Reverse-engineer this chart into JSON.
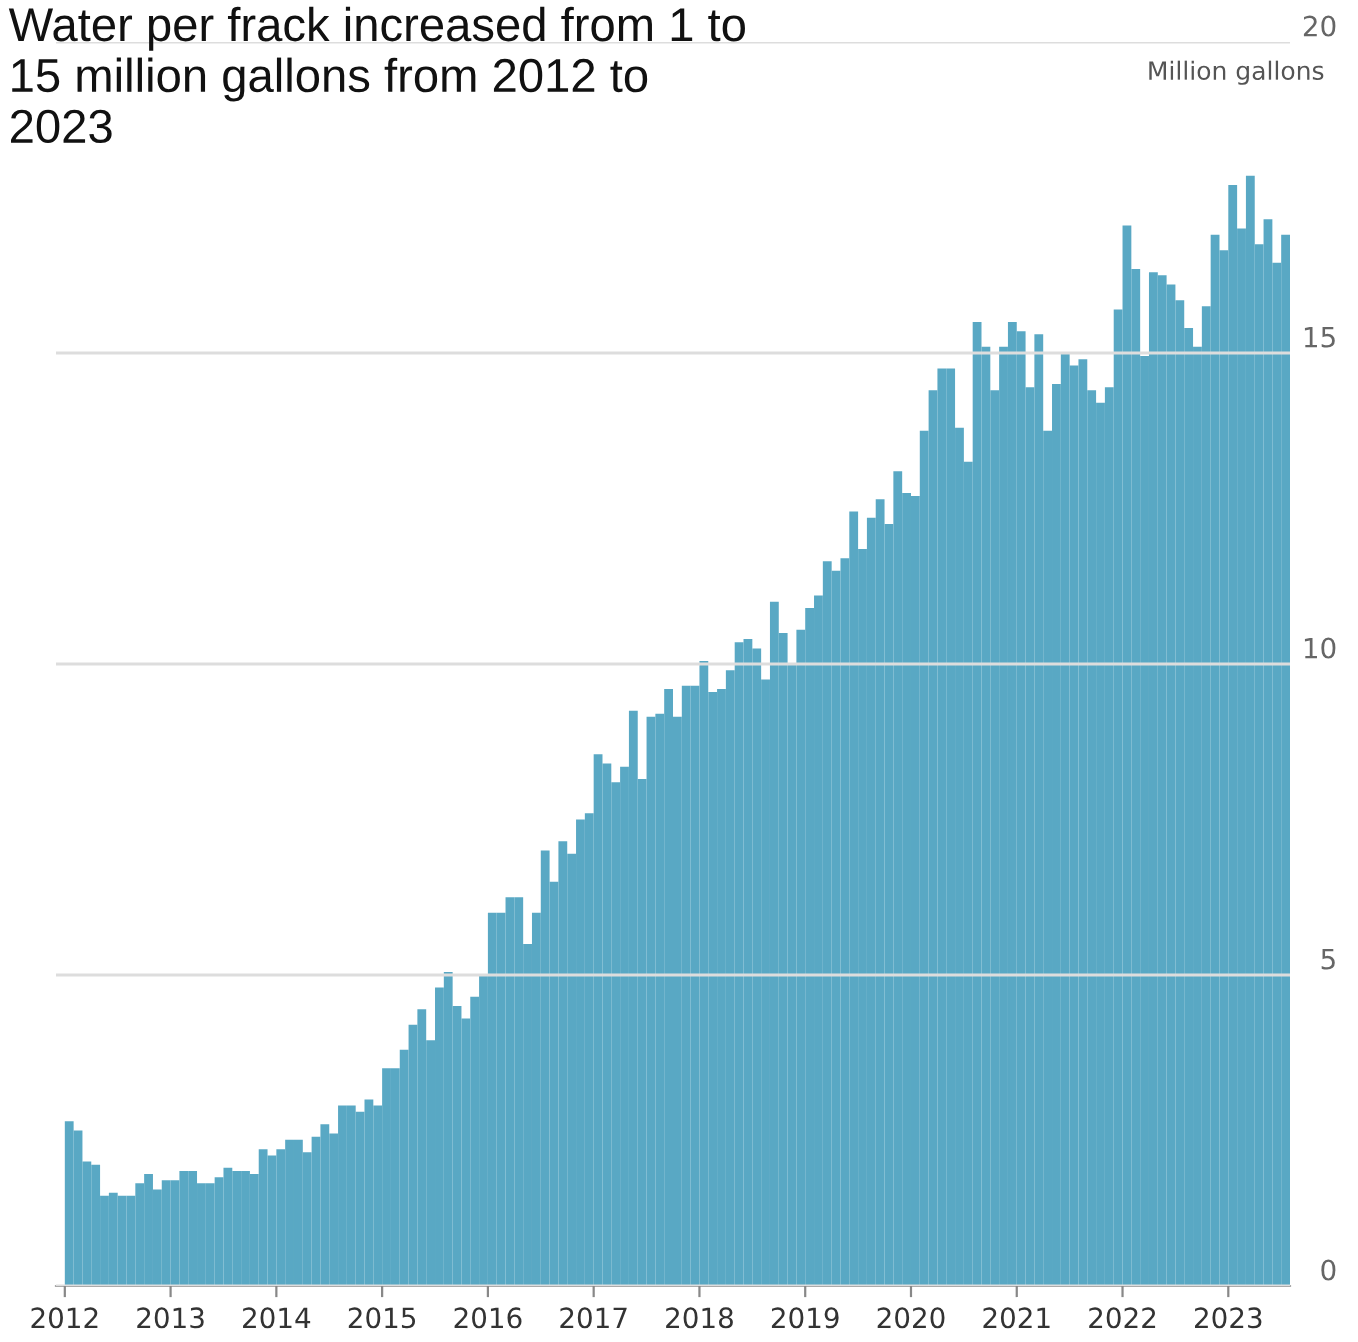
{
  "chart_data": {
    "type": "bar",
    "title": "Water per frack increased from 1 to 15 million gallons from 2012 to 2023",
    "ylabel": "Million gallons",
    "x": [
      "2012-01",
      "2012-02",
      "2012-03",
      "2012-04",
      "2012-05",
      "2012-06",
      "2012-07",
      "2012-08",
      "2012-09",
      "2012-10",
      "2012-11",
      "2012-12",
      "2013-01",
      "2013-02",
      "2013-03",
      "2013-04",
      "2013-05",
      "2013-06",
      "2013-07",
      "2013-08",
      "2013-09",
      "2013-10",
      "2013-11",
      "2013-12",
      "2014-01",
      "2014-02",
      "2014-03",
      "2014-04",
      "2014-05",
      "2014-06",
      "2014-07",
      "2014-08",
      "2014-09",
      "2014-10",
      "2014-11",
      "2014-12",
      "2015-01",
      "2015-02",
      "2015-03",
      "2015-04",
      "2015-05",
      "2015-06",
      "2015-07",
      "2015-08",
      "2015-09",
      "2015-10",
      "2015-11",
      "2015-12",
      "2016-01",
      "2016-02",
      "2016-03",
      "2016-04",
      "2016-05",
      "2016-06",
      "2016-07",
      "2016-08",
      "2016-09",
      "2016-10",
      "2016-11",
      "2016-12",
      "2017-01",
      "2017-02",
      "2017-03",
      "2017-04",
      "2017-05",
      "2017-06",
      "2017-07",
      "2017-08",
      "2017-09",
      "2017-10",
      "2017-11",
      "2017-12",
      "2018-01",
      "2018-02",
      "2018-03",
      "2018-04",
      "2018-05",
      "2018-06",
      "2018-07",
      "2018-08",
      "2018-09",
      "2018-10",
      "2018-11",
      "2018-12",
      "2019-01",
      "2019-02",
      "2019-03",
      "2019-04",
      "2019-05",
      "2019-06",
      "2019-07",
      "2019-08",
      "2019-09",
      "2019-10",
      "2019-11",
      "2019-12",
      "2020-01",
      "2020-02",
      "2020-03",
      "2020-04",
      "2020-05",
      "2020-06",
      "2020-07",
      "2020-08",
      "2020-09",
      "2020-10",
      "2020-11",
      "2020-12",
      "2021-01",
      "2021-02",
      "2021-03",
      "2021-04",
      "2021-05",
      "2021-06",
      "2021-07",
      "2021-08",
      "2021-09",
      "2021-10",
      "2021-11",
      "2021-12",
      "2022-01",
      "2022-02",
      "2022-03",
      "2022-04",
      "2022-05",
      "2022-06",
      "2022-07",
      "2022-08",
      "2022-09",
      "2022-10",
      "2022-11",
      "2022-12",
      "2023-01",
      "2023-02",
      "2023-03",
      "2023-04",
      "2023-05",
      "2023-06",
      "2023-07"
    ],
    "values": [
      2.65,
      2.5,
      2.0,
      1.95,
      1.45,
      1.5,
      1.45,
      1.45,
      1.65,
      1.8,
      1.55,
      1.7,
      1.7,
      1.85,
      1.85,
      1.65,
      1.65,
      1.75,
      1.9,
      1.85,
      1.85,
      1.8,
      2.2,
      2.1,
      2.2,
      2.35,
      2.35,
      2.15,
      2.4,
      2.6,
      2.45,
      2.9,
      2.9,
      2.8,
      3.0,
      2.9,
      3.5,
      3.5,
      3.8,
      4.2,
      4.45,
      3.95,
      4.8,
      5.05,
      4.5,
      4.3,
      4.65,
      5.0,
      6.0,
      6.0,
      6.25,
      6.25,
      5.5,
      6.0,
      7.0,
      6.5,
      7.15,
      6.95,
      7.5,
      7.6,
      8.55,
      8.4,
      8.1,
      8.35,
      9.25,
      8.15,
      9.15,
      9.2,
      9.6,
      9.15,
      9.65,
      9.65,
      10.05,
      9.55,
      9.6,
      9.9,
      10.35,
      10.4,
      10.25,
      9.75,
      11.0,
      10.5,
      10.0,
      10.55,
      10.9,
      11.1,
      11.65,
      11.5,
      11.7,
      12.45,
      11.85,
      12.35,
      12.65,
      12.25,
      13.1,
      12.75,
      12.7,
      13.75,
      14.4,
      14.75,
      14.75,
      13.8,
      13.25,
      15.5,
      15.1,
      14.4,
      15.1,
      15.5,
      15.35,
      14.45,
      15.3,
      13.75,
      14.5,
      15.0,
      14.8,
      14.9,
      14.4,
      14.2,
      14.45,
      15.7,
      17.05,
      16.35,
      14.95,
      16.3,
      16.25,
      16.1,
      15.85,
      15.4,
      15.1,
      15.75,
      16.9,
      16.65,
      17.7,
      17.0,
      17.85,
      16.75,
      17.15,
      16.45,
      16.9
    ],
    "color": "#59a8c4",
    "xlim": [
      "2011-12",
      "2023-08"
    ],
    "xticks": [
      "2012",
      "2013",
      "2014",
      "2015",
      "2016",
      "2017",
      "2018",
      "2019",
      "2020",
      "2021",
      "2022",
      "2023"
    ],
    "ylim": [
      0,
      20
    ],
    "yticks": [
      0,
      5,
      10,
      15,
      20
    ],
    "grid": "y"
  }
}
